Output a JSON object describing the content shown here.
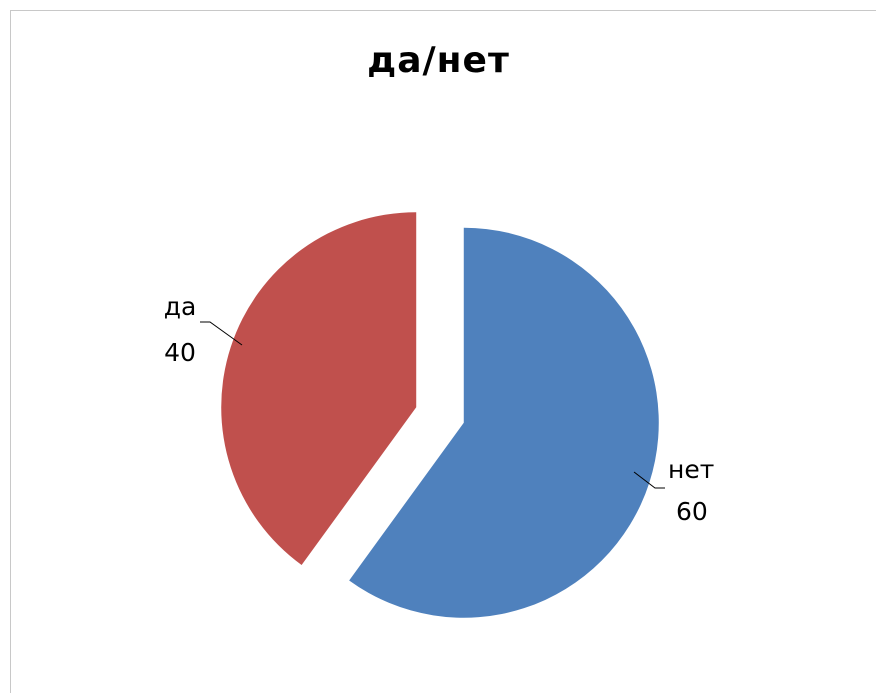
{
  "chart_data": {
    "type": "pie",
    "title": "да/нет",
    "categories": [
      "нет",
      "да"
    ],
    "values": [
      60,
      40
    ],
    "colors": [
      "#4f81bd",
      "#c0504d"
    ],
    "exploded": true,
    "legend": "none",
    "data_labels": "category-and-value"
  }
}
